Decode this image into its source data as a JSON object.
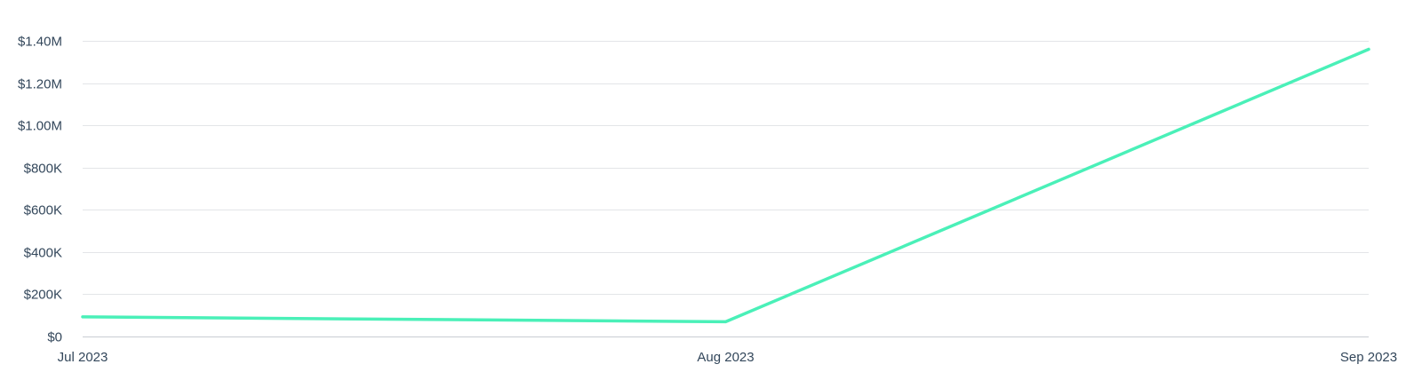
{
  "chart_data": {
    "type": "line",
    "title": "",
    "xlabel": "",
    "ylabel": "",
    "categories": [
      "Jul 2023",
      "Aug 2023",
      "Sep 2023"
    ],
    "series": [
      {
        "values": [
          93000,
          70000,
          1360000
        ]
      }
    ],
    "ylim": [
      0,
      1400000
    ],
    "y_ticks": [
      {
        "value": 0,
        "label": "$0"
      },
      {
        "value": 200000,
        "label": "$200K"
      },
      {
        "value": 400000,
        "label": "$400K"
      },
      {
        "value": 600000,
        "label": "$600K"
      },
      {
        "value": 800000,
        "label": "$800K"
      },
      {
        "value": 1000000,
        "label": "$1.00M"
      },
      {
        "value": 1200000,
        "label": "$1.20M"
      },
      {
        "value": 1400000,
        "label": "$1.40M"
      }
    ],
    "grid": true,
    "legend": "none",
    "colors": {
      "series": "#4af0b8",
      "grid": "#e3e5e8",
      "text": "#33475b"
    }
  }
}
